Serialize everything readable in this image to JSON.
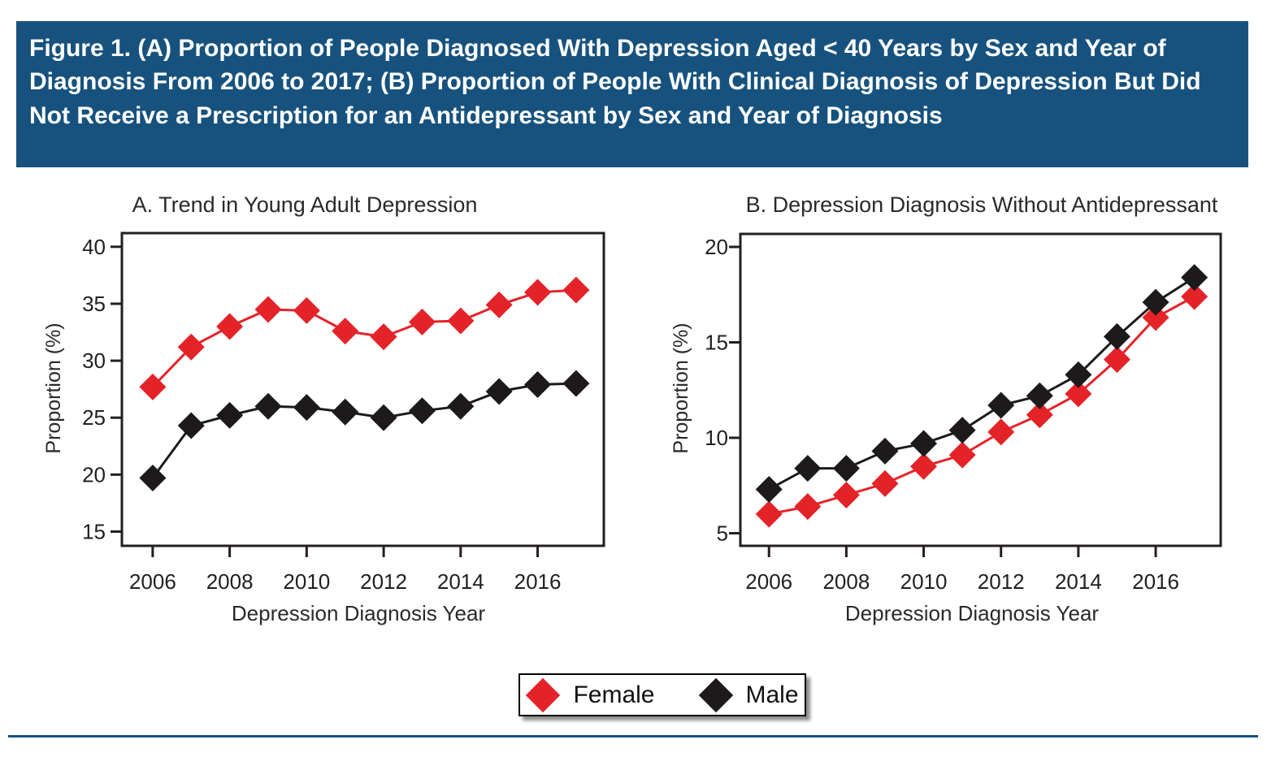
{
  "header": {
    "title": "Figure 1. (A) Proportion of People Diagnosed With Depression Aged < 40 Years by Sex and Year of Diagnosis From 2006 to 2017; (B) Proportion of People With Clinical Diagnosis of Depression But Did Not Receive a Prescription for an Antidepressant by Sex and Year of Diagnosis",
    "background": "#17527e",
    "text_color": "#ffffff"
  },
  "colors": {
    "female": "#e42329",
    "male": "#1c1a1a",
    "axis": "#231f20",
    "accent_blue": "#17527e"
  },
  "chart_data": [
    {
      "id": "A",
      "type": "line",
      "title": "A. Trend in Young Adult Depression",
      "xlabel": "Depression Diagnosis Year",
      "ylabel": "Proportion (%)",
      "x": [
        2006,
        2007,
        2008,
        2009,
        2010,
        2011,
        2012,
        2013,
        2014,
        2015,
        2016,
        2017
      ],
      "xticks": [
        2006,
        2008,
        2010,
        2012,
        2014,
        2016
      ],
      "yticks": [
        15,
        20,
        25,
        30,
        35,
        40
      ],
      "xlim": [
        2005.2,
        2017.72
      ],
      "ylim": [
        13.75,
        41.2
      ],
      "grid": false,
      "series": [
        {
          "name": "Female",
          "color": "#e42329",
          "marker": "diamond",
          "values": [
            27.7,
            31.2,
            33.0,
            34.5,
            34.4,
            32.6,
            32.1,
            33.4,
            33.5,
            34.9,
            36.0,
            36.2
          ]
        },
        {
          "name": "Male",
          "color": "#1c1a1a",
          "marker": "diamond",
          "values": [
            19.7,
            24.3,
            25.2,
            26.0,
            25.9,
            25.5,
            25.0,
            25.6,
            26.0,
            27.3,
            27.9,
            28.0
          ]
        }
      ]
    },
    {
      "id": "B",
      "type": "line",
      "title": "B. Depression Diagnosis Without Antidepressant",
      "xlabel": "Depression Diagnosis Year",
      "ylabel": "Proportion (%)",
      "x": [
        2006,
        2007,
        2008,
        2009,
        2010,
        2011,
        2012,
        2013,
        2014,
        2015,
        2016,
        2017
      ],
      "xticks": [
        2006,
        2008,
        2010,
        2012,
        2014,
        2016
      ],
      "yticks": [
        5,
        10,
        15,
        20
      ],
      "xlim": [
        2005.26,
        2017.68
      ],
      "ylim": [
        4.34,
        20.68
      ],
      "grid": false,
      "series": [
        {
          "name": "Female",
          "color": "#e42329",
          "marker": "diamond",
          "values": [
            6.0,
            6.4,
            7.0,
            7.6,
            8.5,
            9.1,
            10.3,
            11.2,
            12.3,
            14.1,
            16.3,
            17.4
          ]
        },
        {
          "name": "Male",
          "color": "#1c1a1a",
          "marker": "diamond",
          "values": [
            7.3,
            8.4,
            8.4,
            9.3,
            9.7,
            10.4,
            11.7,
            12.2,
            13.3,
            15.3,
            17.1,
            18.4
          ]
        }
      ]
    }
  ],
  "legend": {
    "items": [
      {
        "label": "Female",
        "color": "#e42329",
        "icon": "diamond"
      },
      {
        "label": "Male",
        "color": "#1c1a1a",
        "icon": "diamond"
      }
    ]
  }
}
